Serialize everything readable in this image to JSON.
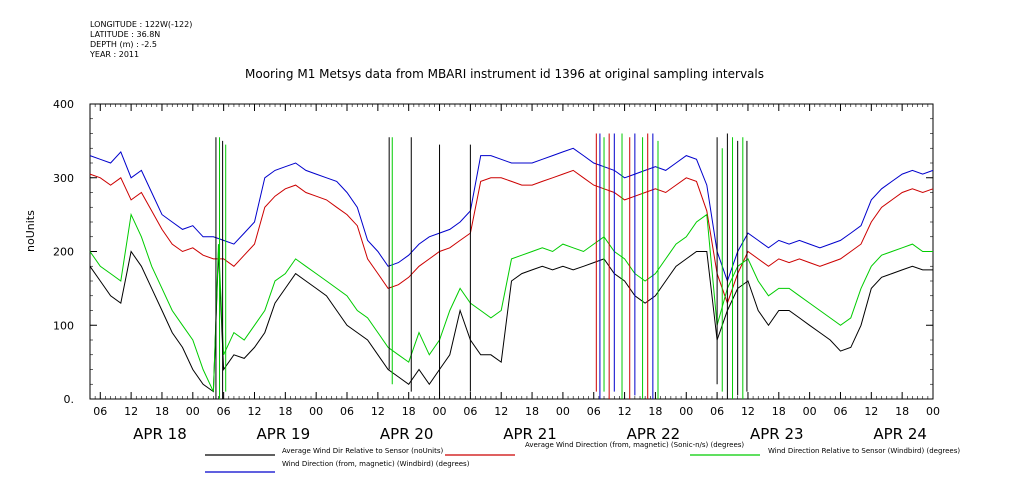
{
  "metadata": {
    "longitude": "LONGITUDE : 122W(-122)",
    "latitude": "LATITUDE : 36.8N",
    "depth": "DEPTH (m) : -2.5",
    "year": "YEAR : 2011"
  },
  "chart_data": {
    "type": "line",
    "title": "Mooring M1 Metsys data from MBARI instrument id 1396 at original sampling intervals",
    "xlabel": "",
    "ylabel": "noUnits",
    "ylim": [
      0,
      400
    ],
    "y_ticks": [
      0,
      100,
      200,
      300,
      400
    ],
    "y_tick_labels": [
      "0.",
      "100",
      "200",
      "300",
      "400"
    ],
    "xlim_hours": [
      0,
      164
    ],
    "x_tick_labels": [
      "06",
      "12",
      "18",
      "00",
      "06",
      "12",
      "18",
      "00",
      "06",
      "12",
      "18",
      "00",
      "06",
      "12",
      "18",
      "00",
      "06",
      "12",
      "18",
      "00",
      "06",
      "12",
      "18",
      "00",
      "06",
      "12",
      "18",
      "00",
      "06",
      "12",
      "18",
      "00"
    ],
    "day_labels": [
      "APR 18",
      "APR 19",
      "APR 20",
      "APR 21",
      "APR 22",
      "APR 23",
      "APR 24"
    ],
    "grid": false,
    "legend_position": "bottom",
    "series": [
      {
        "name": "Average Wind Dir Relative to Sensor (noUnits)",
        "color": "#000000",
        "x": [
          0,
          2,
          4,
          6,
          8,
          10,
          12,
          14,
          16,
          18,
          20,
          22,
          24,
          25,
          26,
          28,
          30,
          32,
          34,
          36,
          38,
          40,
          42,
          44,
          46,
          48,
          50,
          52,
          54,
          56,
          58,
          60,
          62,
          64,
          66,
          68,
          70,
          72,
          74,
          76,
          78,
          80,
          82,
          84,
          86,
          88,
          90,
          92,
          94,
          96,
          98,
          100,
          102,
          104,
          106,
          108,
          110,
          112,
          114,
          116,
          118,
          120,
          122,
          124,
          126,
          128,
          130,
          132,
          134,
          136,
          138,
          140,
          142,
          144,
          146,
          148,
          150,
          152,
          154,
          156,
          158,
          160,
          162,
          164
        ],
        "values": [
          180,
          160,
          140,
          130,
          200,
          180,
          150,
          120,
          90,
          70,
          40,
          20,
          10,
          200,
          40,
          60,
          55,
          70,
          90,
          130,
          150,
          170,
          160,
          150,
          140,
          120,
          100,
          90,
          80,
          60,
          40,
          30,
          20,
          40,
          20,
          40,
          60,
          120,
          80,
          60,
          60,
          50,
          160,
          170,
          175,
          180,
          175,
          180,
          175,
          180,
          185,
          190,
          170,
          160,
          140,
          130,
          140,
          160,
          180,
          190,
          200,
          200,
          80,
          120,
          150,
          160,
          120,
          100,
          120,
          120,
          110,
          100,
          90,
          80,
          65,
          70,
          100,
          150,
          165,
          170,
          175,
          180,
          175,
          175
        ]
      },
      {
        "name": "Average Wind Direction (from, magnetic) (Sonic-n/s) (degrees)",
        "color": "#cc0000",
        "x": [
          0,
          2,
          4,
          6,
          8,
          10,
          12,
          14,
          16,
          18,
          20,
          22,
          24,
          26,
          28,
          30,
          32,
          34,
          36,
          38,
          40,
          42,
          44,
          46,
          48,
          50,
          52,
          54,
          56,
          58,
          60,
          62,
          64,
          66,
          68,
          70,
          72,
          74,
          76,
          78,
          80,
          82,
          84,
          86,
          88,
          90,
          92,
          94,
          96,
          98,
          100,
          102,
          104,
          106,
          108,
          110,
          112,
          114,
          116,
          118,
          120,
          122,
          124,
          126,
          128,
          130,
          132,
          134,
          136,
          138,
          140,
          142,
          144,
          146,
          148,
          150,
          152,
          154,
          156,
          158,
          160,
          162,
          164
        ],
        "values": [
          305,
          300,
          290,
          300,
          270,
          280,
          255,
          230,
          210,
          200,
          205,
          195,
          190,
          190,
          180,
          195,
          210,
          260,
          275,
          285,
          290,
          280,
          275,
          270,
          260,
          250,
          235,
          190,
          170,
          150,
          155,
          165,
          180,
          190,
          200,
          205,
          215,
          225,
          295,
          300,
          300,
          295,
          290,
          290,
          295,
          300,
          305,
          310,
          300,
          290,
          285,
          280,
          270,
          275,
          280,
          285,
          280,
          290,
          300,
          295,
          255,
          170,
          130,
          170,
          200,
          190,
          180,
          190,
          185,
          190,
          185,
          180,
          185,
          190,
          200,
          210,
          240,
          260,
          270,
          280,
          285,
          280,
          285
        ]
      },
      {
        "name": "Wind Direction Relative to Sensor (Windbird) (degrees)",
        "color": "#00cc00",
        "x": [
          0,
          2,
          4,
          6,
          8,
          10,
          12,
          14,
          16,
          18,
          20,
          22,
          24,
          25,
          26,
          28,
          30,
          32,
          34,
          36,
          38,
          40,
          42,
          44,
          46,
          48,
          50,
          52,
          54,
          56,
          58,
          60,
          62,
          64,
          66,
          68,
          70,
          72,
          74,
          76,
          78,
          80,
          82,
          84,
          86,
          88,
          90,
          92,
          94,
          96,
          98,
          100,
          102,
          104,
          106,
          108,
          110,
          112,
          114,
          116,
          118,
          120,
          122,
          124,
          126,
          128,
          130,
          132,
          134,
          136,
          138,
          140,
          142,
          144,
          146,
          148,
          150,
          152,
          154,
          156,
          158,
          160,
          162,
          164
        ],
        "values": [
          200,
          180,
          170,
          160,
          250,
          220,
          180,
          150,
          120,
          100,
          80,
          40,
          10,
          210,
          60,
          90,
          80,
          100,
          120,
          160,
          170,
          190,
          180,
          170,
          160,
          150,
          140,
          120,
          110,
          90,
          70,
          60,
          50,
          90,
          60,
          80,
          120,
          150,
          130,
          120,
          110,
          120,
          190,
          195,
          200,
          205,
          200,
          210,
          205,
          200,
          210,
          220,
          200,
          190,
          170,
          160,
          170,
          190,
          210,
          220,
          240,
          250,
          100,
          150,
          180,
          190,
          160,
          140,
          150,
          150,
          140,
          130,
          120,
          110,
          100,
          110,
          150,
          180,
          195,
          200,
          205,
          210,
          200,
          200
        ]
      },
      {
        "name": "Wind Direction (from, magnetic) (Windbird) (degrees)",
        "color": "#0000cc",
        "x": [
          0,
          2,
          4,
          6,
          8,
          10,
          12,
          14,
          16,
          18,
          20,
          22,
          24,
          26,
          28,
          30,
          32,
          34,
          36,
          38,
          40,
          42,
          44,
          46,
          48,
          50,
          52,
          54,
          56,
          58,
          60,
          62,
          64,
          66,
          68,
          70,
          72,
          74,
          76,
          78,
          80,
          82,
          84,
          86,
          88,
          90,
          92,
          94,
          96,
          98,
          100,
          102,
          104,
          106,
          108,
          110,
          112,
          114,
          116,
          118,
          120,
          122,
          124,
          126,
          128,
          130,
          132,
          134,
          136,
          138,
          140,
          142,
          144,
          146,
          148,
          150,
          152,
          154,
          156,
          158,
          160,
          162,
          164
        ],
        "values": [
          330,
          325,
          320,
          335,
          300,
          310,
          280,
          250,
          240,
          230,
          235,
          220,
          220,
          215,
          210,
          225,
          240,
          300,
          310,
          315,
          320,
          310,
          305,
          300,
          295,
          280,
          260,
          215,
          200,
          180,
          185,
          195,
          210,
          220,
          225,
          230,
          240,
          255,
          330,
          330,
          325,
          320,
          320,
          320,
          325,
          330,
          335,
          340,
          330,
          320,
          315,
          310,
          300,
          305,
          310,
          315,
          310,
          320,
          330,
          325,
          290,
          200,
          160,
          200,
          225,
          215,
          205,
          215,
          210,
          215,
          210,
          205,
          210,
          215,
          225,
          235,
          270,
          285,
          295,
          305,
          310,
          305,
          310
        ]
      }
    ],
    "vertical_spikes": [
      {
        "x": 24.5,
        "color": "#000000",
        "from": 0,
        "to": 355
      },
      {
        "x": 25.2,
        "color": "#00cc00",
        "from": 0,
        "to": 355
      },
      {
        "x": 25.8,
        "color": "#000000",
        "from": 0,
        "to": 350
      },
      {
        "x": 26.4,
        "color": "#00cc00",
        "from": 10,
        "to": 345
      },
      {
        "x": 58.2,
        "color": "#000000",
        "from": 40,
        "to": 355
      },
      {
        "x": 58.8,
        "color": "#00cc00",
        "from": 20,
        "to": 355
      },
      {
        "x": 62.5,
        "color": "#000000",
        "from": 10,
        "to": 355
      },
      {
        "x": 68.0,
        "color": "#000000",
        "from": 0,
        "to": 345
      },
      {
        "x": 74.0,
        "color": "#000000",
        "from": 10,
        "to": 345
      },
      {
        "x": 98.5,
        "color": "#cc0000",
        "from": 10,
        "to": 360
      },
      {
        "x": 99.2,
        "color": "#0000cc",
        "from": 0,
        "to": 360
      },
      {
        "x": 100.0,
        "color": "#00cc00",
        "from": 10,
        "to": 355
      },
      {
        "x": 101.0,
        "color": "#cc0000",
        "from": 0,
        "to": 360
      },
      {
        "x": 102.0,
        "color": "#0000cc",
        "from": 10,
        "to": 360
      },
      {
        "x": 103.5,
        "color": "#00cc00",
        "from": 0,
        "to": 360
      },
      {
        "x": 105.0,
        "color": "#cc0000",
        "from": 0,
        "to": 355
      },
      {
        "x": 106.0,
        "color": "#0000cc",
        "from": 5,
        "to": 360
      },
      {
        "x": 107.5,
        "color": "#00cc00",
        "from": 0,
        "to": 355
      },
      {
        "x": 108.5,
        "color": "#cc0000",
        "from": 0,
        "to": 360
      },
      {
        "x": 109.5,
        "color": "#0000cc",
        "from": 0,
        "to": 360
      },
      {
        "x": 110.5,
        "color": "#00cc00",
        "from": 0,
        "to": 350
      },
      {
        "x": 122.0,
        "color": "#000000",
        "from": 20,
        "to": 355
      },
      {
        "x": 123.0,
        "color": "#00cc00",
        "from": 10,
        "to": 340
      },
      {
        "x": 124.0,
        "color": "#000000",
        "from": 0,
        "to": 360
      },
      {
        "x": 125.0,
        "color": "#00cc00",
        "from": 0,
        "to": 355
      },
      {
        "x": 126.0,
        "color": "#000000",
        "from": 5,
        "to": 350
      },
      {
        "x": 127.0,
        "color": "#00cc00",
        "from": 0,
        "to": 355
      },
      {
        "x": 127.8,
        "color": "#000000",
        "from": 10,
        "to": 350
      }
    ]
  }
}
